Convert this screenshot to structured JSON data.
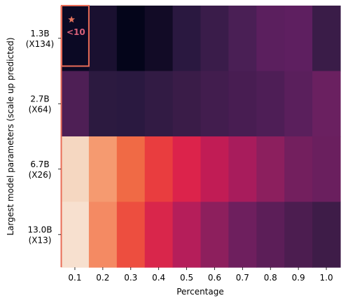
{
  "chart_data": {
    "type": "heatmap",
    "xlabel": "Percentage",
    "ylabel": "Largest model parameters (scale up predicted)",
    "x_categories": [
      "0.1",
      "0.2",
      "0.3",
      "0.4",
      "0.5",
      "0.6",
      "0.7",
      "0.8",
      "0.9",
      "1.0"
    ],
    "y_categories": [
      {
        "line1": "1.3B",
        "line2": "(X134)"
      },
      {
        "line1": "2.7B",
        "line2": "(X64)"
      },
      {
        "line1": "6.7B",
        "line2": "(X26)"
      },
      {
        "line1": "13.0B",
        "line2": "(X13)"
      }
    ],
    "cell_colors": [
      [
        "#0b0924",
        "#1a1030",
        "#04051a",
        "#120b26",
        "#2a1840",
        "#3a1c4a",
        "#4a1f55",
        "#5b1f5e",
        "#5e1f60",
        "#3a1c48"
      ],
      [
        "#4e1f55",
        "#2c1a40",
        "#2a1940",
        "#321b44",
        "#3a1c48",
        "#421d4e",
        "#481d52",
        "#4e1e56",
        "#5a1f5c",
        "#6a2060"
      ],
      [
        "#f5d7c1",
        "#f59a70",
        "#f06a45",
        "#e93d3f",
        "#dc234b",
        "#c11c55",
        "#a81c5c",
        "#8c1f5e",
        "#731f5e",
        "#6a1f5e"
      ],
      [
        "#f7e0cf",
        "#f48a63",
        "#ed4e3f",
        "#d9264b",
        "#b51e5a",
        "#8d1f5d",
        "#6e1f5e",
        "#5c1e58",
        "#4c1d50",
        "#3e1c48"
      ]
    ],
    "highlight": {
      "row": 0,
      "col": 0,
      "marker_color": "#e5735c",
      "border_color": "#e86c57"
    },
    "annotation": {
      "text": "<10",
      "row": 0,
      "col": 0,
      "color": "#d9617a"
    }
  }
}
